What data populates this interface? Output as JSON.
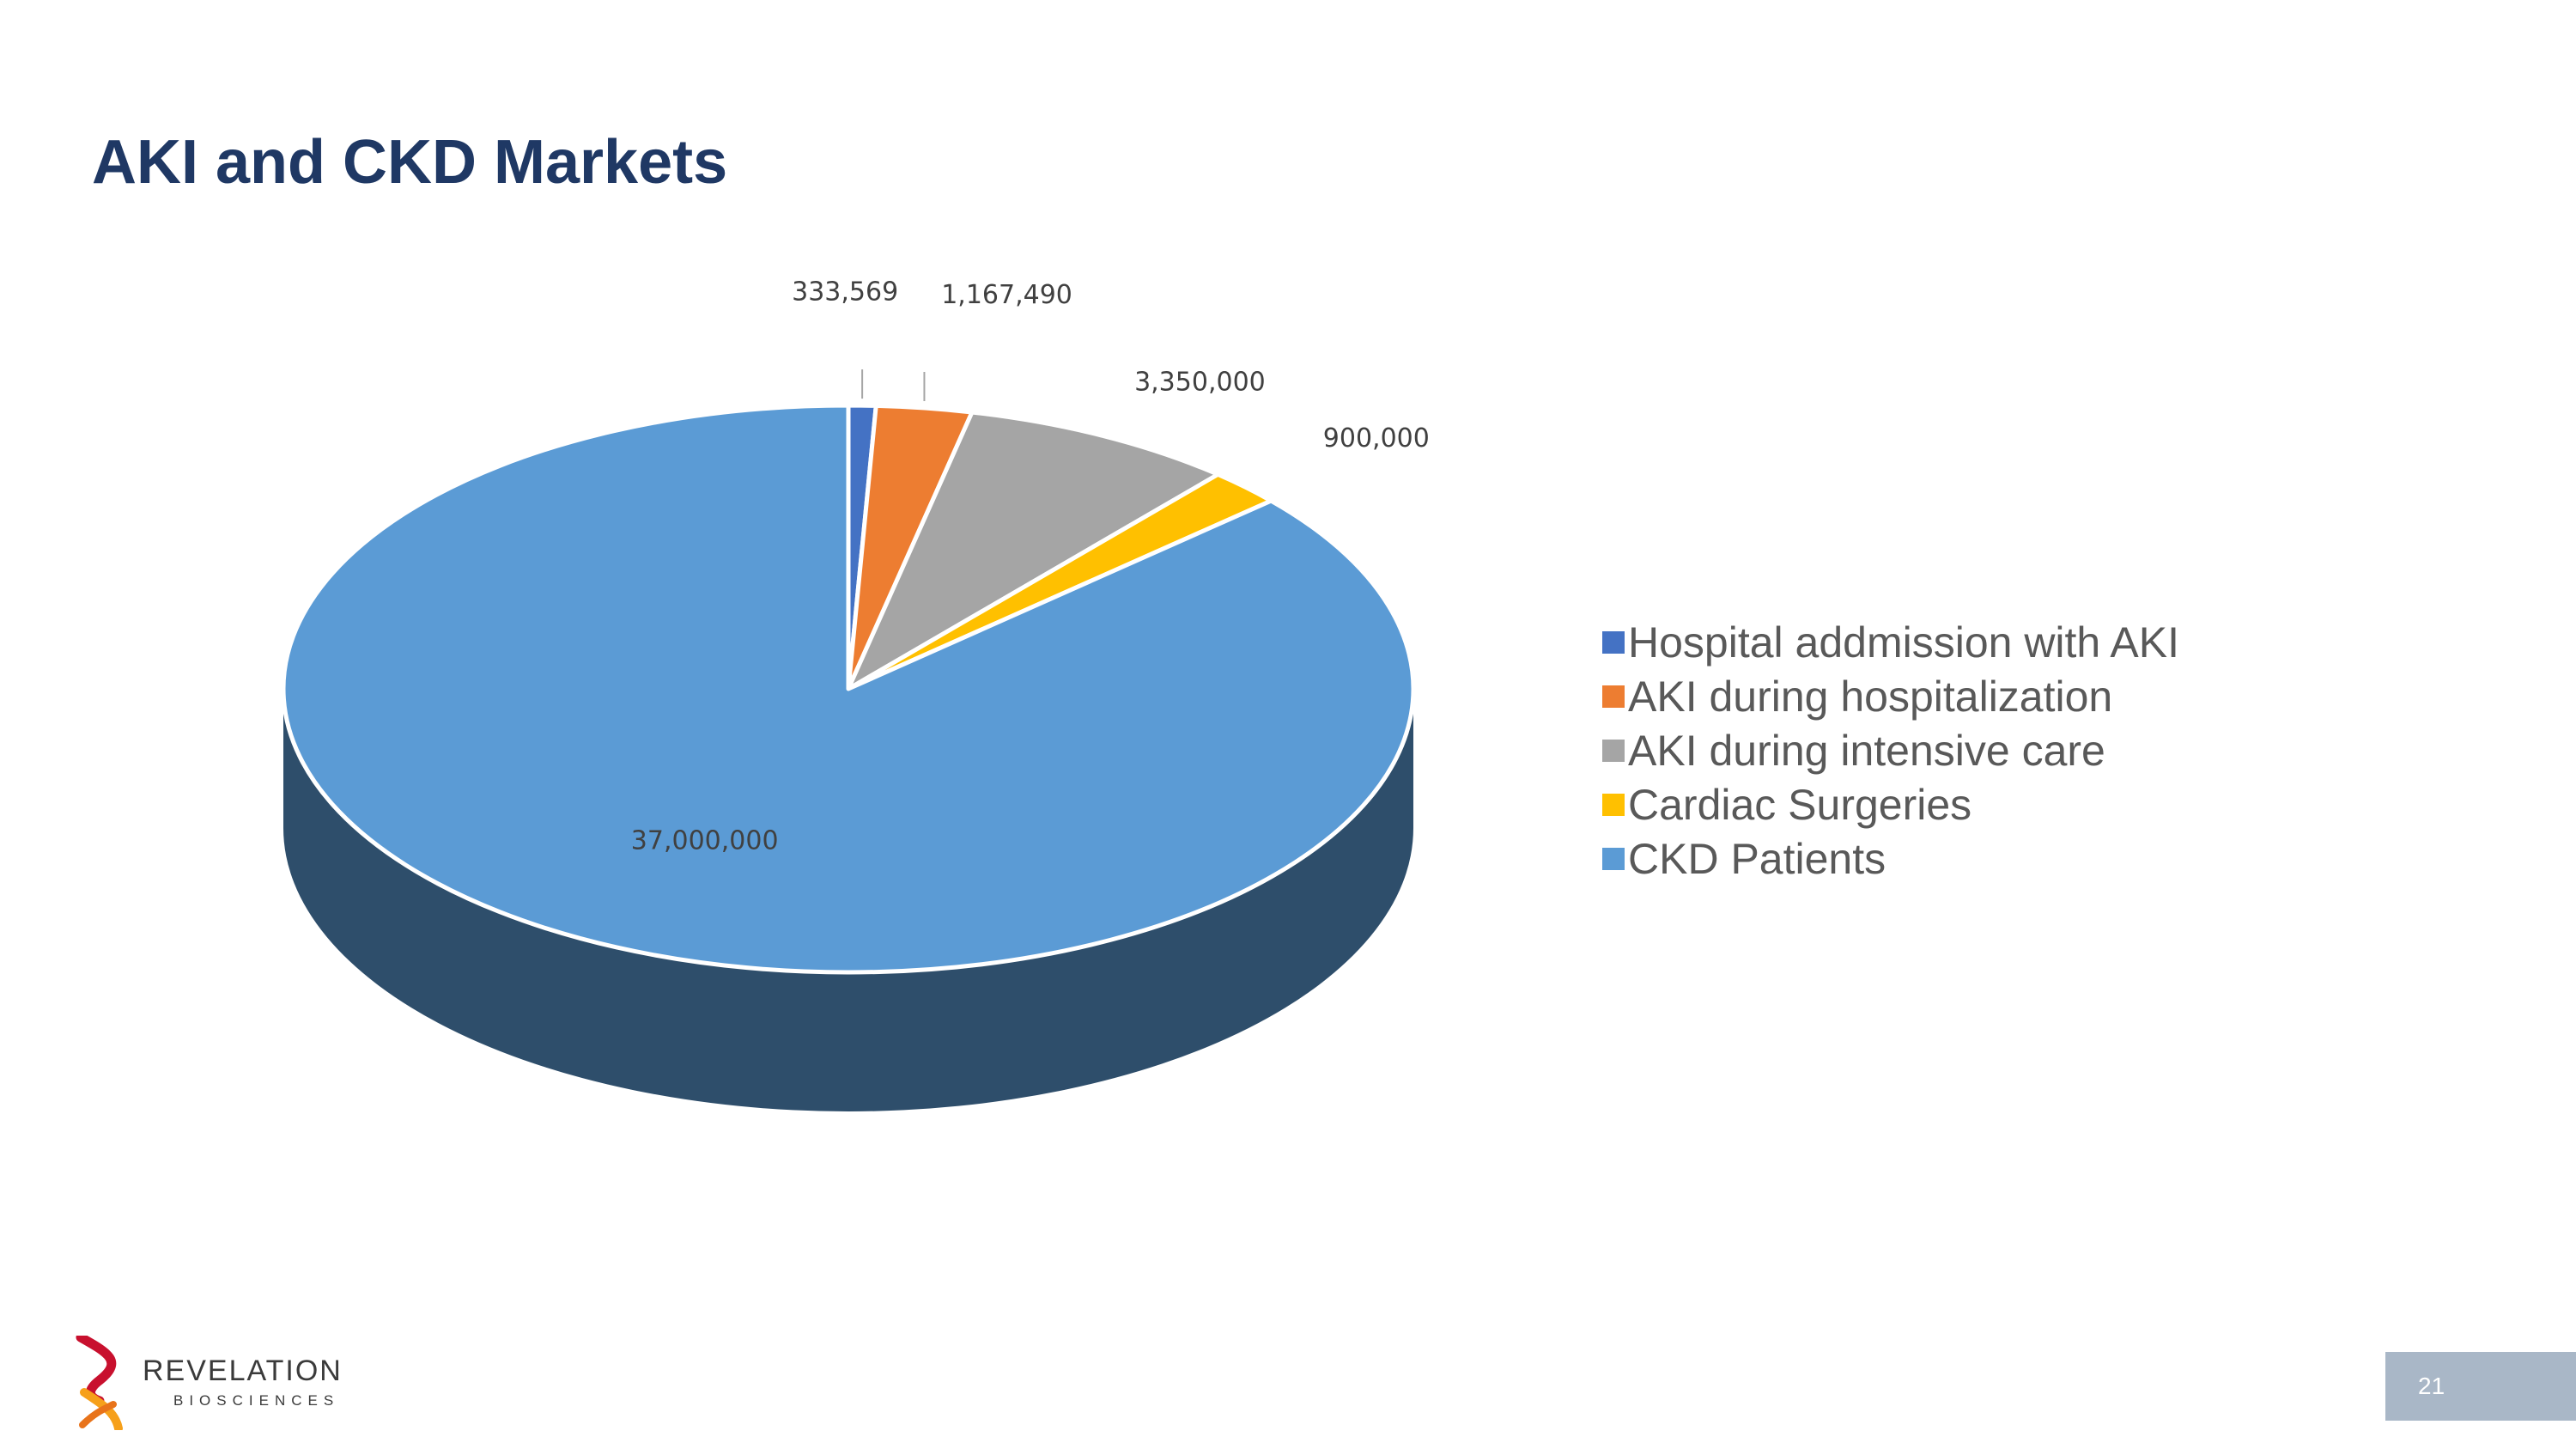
{
  "slide": {
    "title": "AKI and CKD Markets",
    "page_number": "21"
  },
  "logo": {
    "name": "REVELATION",
    "subtitle": "BIOSCIENCES"
  },
  "chart_data": {
    "type": "pie",
    "style": "3d",
    "title": "",
    "categories": [
      "Hospital addmission with AKI",
      "AKI during hospitalization",
      "AKI during intensive care",
      "Cardiac Surgeries",
      "CKD Patients"
    ],
    "values": [
      333569,
      1167490,
      3350000,
      900000,
      37000000
    ],
    "data_labels": [
      "333,569",
      "1,167,490",
      "3,350,000",
      "900,000",
      "37,000,000"
    ],
    "colors": [
      "#4472c4",
      "#ed7d31",
      "#a5a5a5",
      "#ffc000",
      "#5b9bd5"
    ],
    "side_color": "#2e4e6b",
    "legend_position": "right"
  }
}
